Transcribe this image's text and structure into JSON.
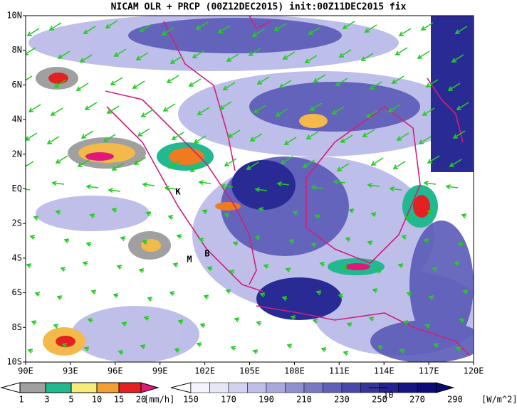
{
  "title": "NICAM OLR + PRCP (00Z12DEC2015) init:00Z11DEC2015 fix",
  "x_labels": [
    "90E",
    "93E",
    "96E",
    "99E",
    "102E",
    "105E",
    "108E",
    "111E",
    "114E",
    "117E",
    "120E"
  ],
  "y_labels": [
    "10N",
    "8N",
    "6N",
    "4N",
    "2N",
    "EQ",
    "2S",
    "4S",
    "6S",
    "8S",
    "10S"
  ],
  "markers": [
    "K",
    "M",
    "B"
  ],
  "prcp_legend": {
    "labels": [
      "1",
      "3",
      "5",
      "10",
      "15",
      "20"
    ],
    "unit": "[mm/h]"
  },
  "olr_legend": {
    "labels": [
      "150",
      "170",
      "190",
      "210",
      "230",
      "250",
      "270",
      "290"
    ],
    "unit": "[W/m^2]"
  },
  "vector_label": "10"
}
